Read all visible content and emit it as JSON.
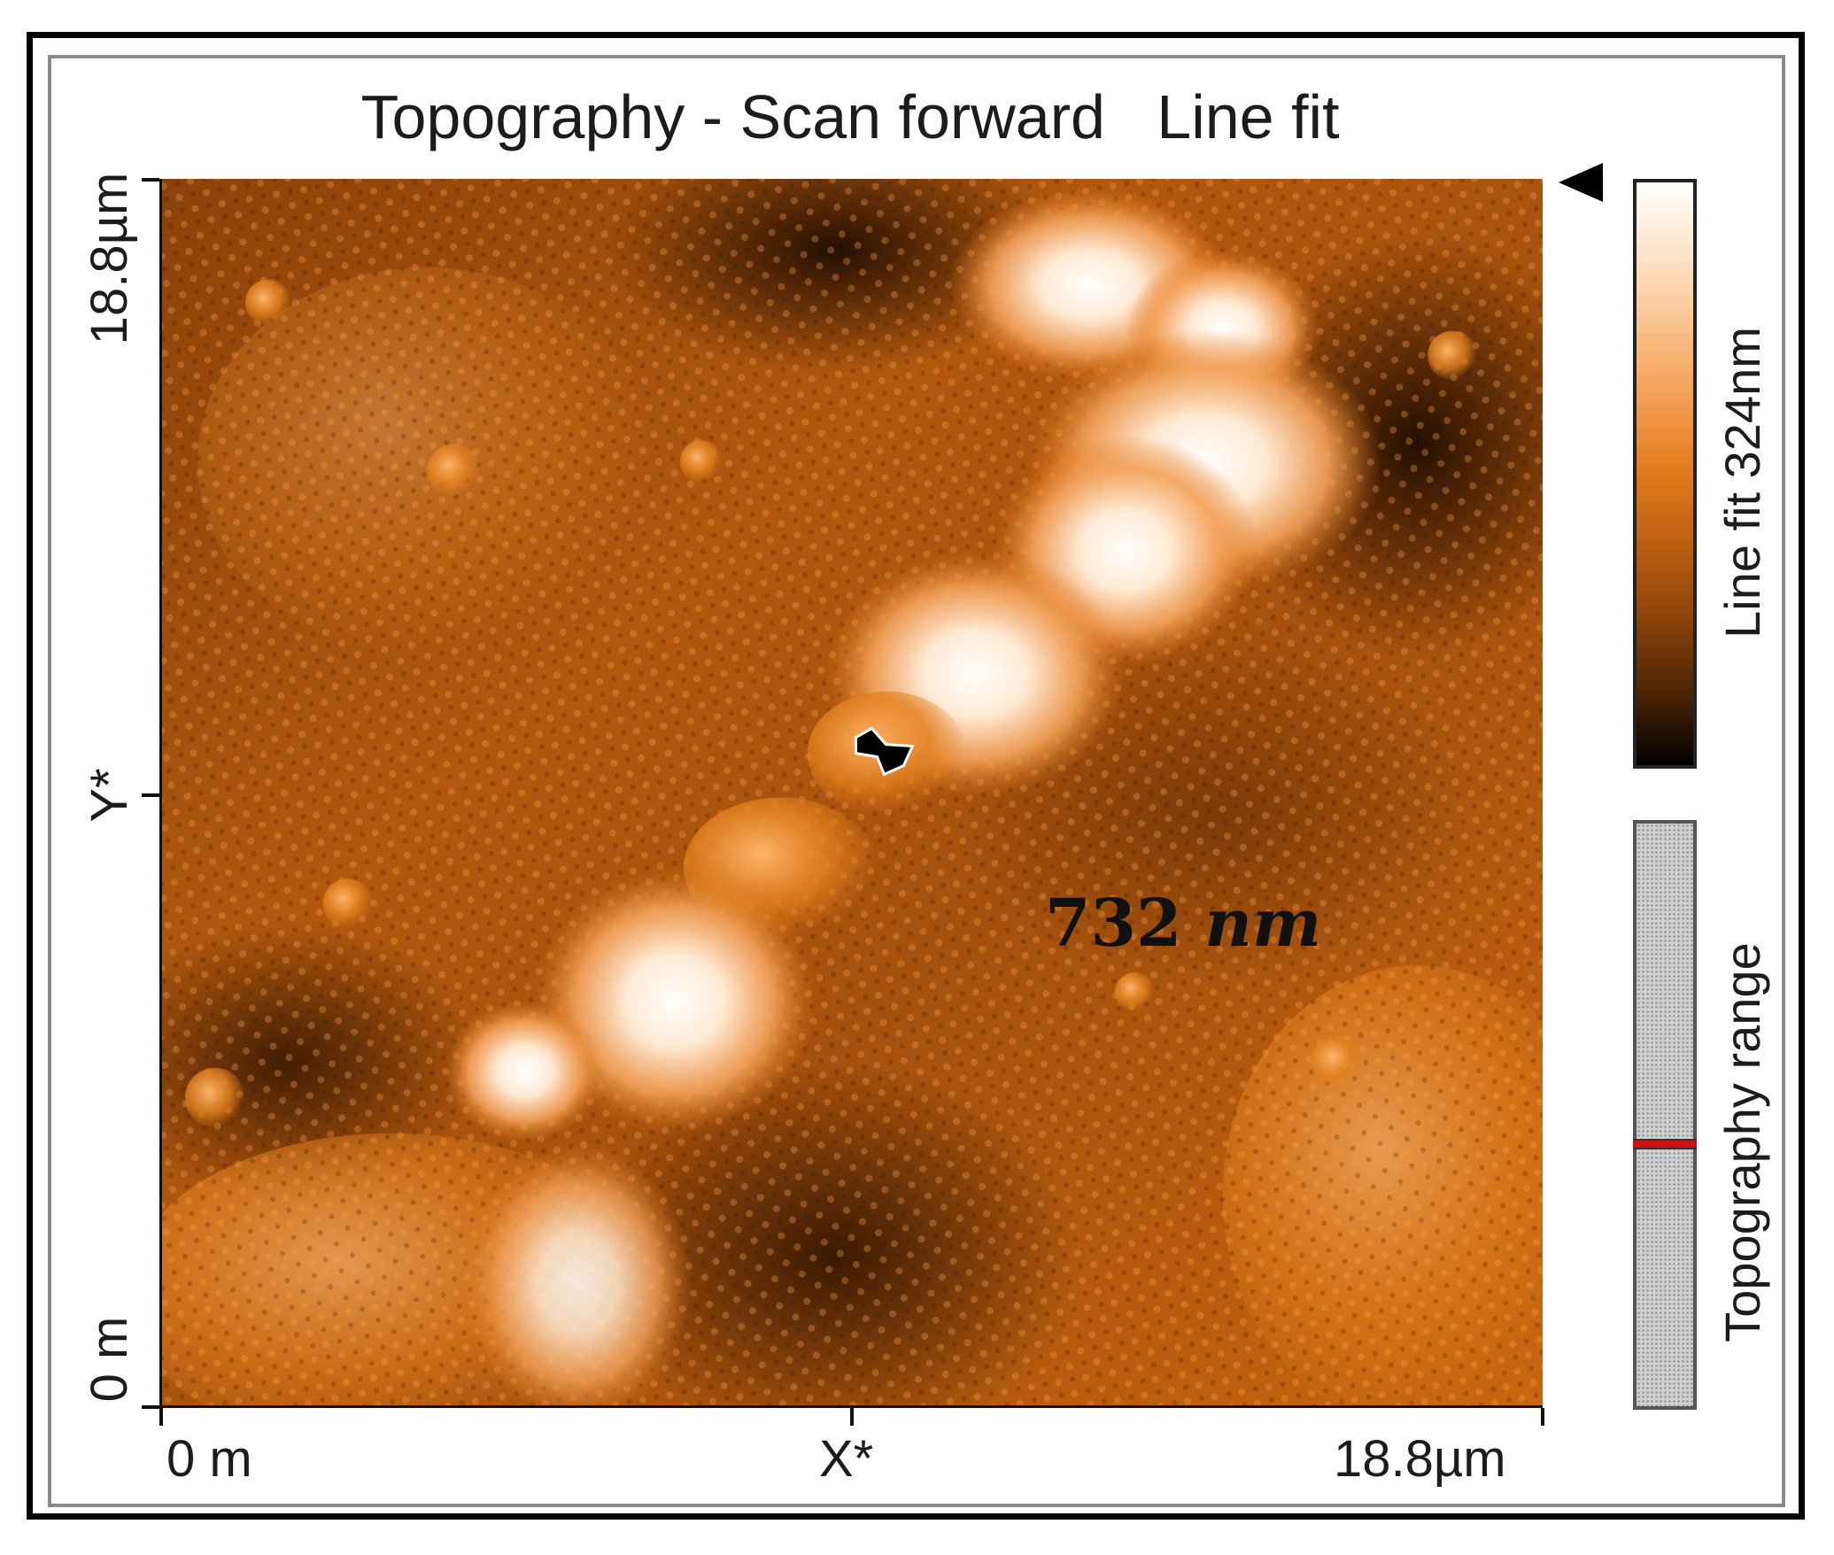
{
  "figure": {
    "title": "Topography - Scan forward   Line fit",
    "annotation_value": "732",
    "annotation_unit": "nm",
    "y_axis": {
      "top_label": "18.8µm",
      "mid_label": "Y*",
      "bottom_label": "0 m"
    },
    "x_axis": {
      "left_label": "0 m",
      "mid_label": "X*",
      "right_label": "18.8µm"
    },
    "colorbar_label": "Line fit 324nm",
    "range_label": "Topography range",
    "colors": {
      "dark": "#000000",
      "mid": "#e07a1c",
      "light": "#ffffff",
      "marker": "#d01010"
    },
    "range_marker_fraction": 0.45
  }
}
